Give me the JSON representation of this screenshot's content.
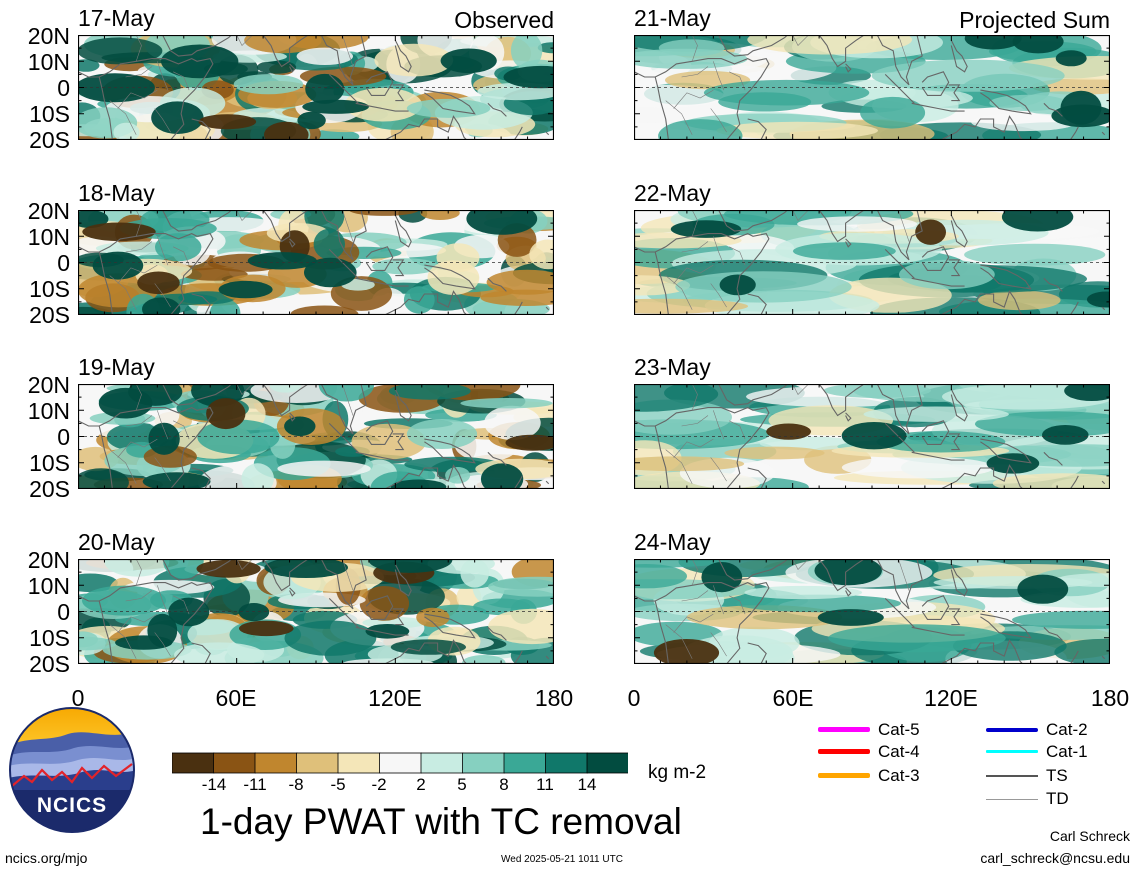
{
  "panels_left": [
    {
      "date": "17-May",
      "tag": "Observed"
    },
    {
      "date": "18-May"
    },
    {
      "date": "19-May"
    },
    {
      "date": "20-May"
    }
  ],
  "panels_right": [
    {
      "date": "21-May",
      "tag": "Projected Sum"
    },
    {
      "date": "22-May"
    },
    {
      "date": "23-May"
    },
    {
      "date": "24-May"
    }
  ],
  "lat_labels": [
    "20N",
    "10N",
    "0",
    "10S",
    "20S"
  ],
  "lon_labels": [
    "0",
    "60E",
    "120E",
    "180"
  ],
  "colorbar": {
    "ticks": [
      "-14",
      "-11",
      "-8",
      "-5",
      "-2",
      "2",
      "5",
      "8",
      "11",
      "14"
    ],
    "colors": [
      "#4a3010",
      "#8a5414",
      "#c0862e",
      "#dfc07a",
      "#f4e6b8",
      "#f7f7f7",
      "#c8ece2",
      "#86d0c0",
      "#3aa896",
      "#10786a",
      "#024c40"
    ],
    "units": "kg m-2"
  },
  "title": "1-day PWAT with TC removal",
  "legend": [
    {
      "label": "Cat-5",
      "color": "#ff00ff"
    },
    {
      "label": "Cat-4",
      "color": "#ff0000"
    },
    {
      "label": "Cat-3",
      "color": "#ffa500"
    },
    {
      "label": "Cat-2",
      "color": "#0000cc"
    },
    {
      "label": "Cat-1",
      "color": "#00ffff"
    },
    {
      "label": "TS",
      "color": "#555555"
    },
    {
      "label": "TD",
      "color": "#999999"
    }
  ],
  "logo": {
    "text": "NCICS"
  },
  "footer": {
    "url": "ncics.org/mjo",
    "timestamp": "Wed 2025-05-21 1011 UTC",
    "author": "Carl Schreck",
    "email": "carl_schreck@ncsu.edu"
  },
  "chart_data": {
    "type": "heatmap",
    "variable": "1-day PWAT with TC removal",
    "units": "kg m-2",
    "x_axis": {
      "range": [
        0,
        180
      ],
      "ticks": [
        "0",
        "60E",
        "120E",
        "180"
      ]
    },
    "y_axis": {
      "range": [
        -20,
        20
      ],
      "ticks": [
        "20N",
        "10N",
        "0",
        "10S",
        "20S"
      ]
    },
    "color_levels": [
      -14,
      -11,
      -8,
      -5,
      -2,
      2,
      5,
      8,
      11,
      14
    ],
    "panels": [
      {
        "date": "17-May",
        "group": "Observed"
      },
      {
        "date": "18-May",
        "group": "Observed"
      },
      {
        "date": "19-May",
        "group": "Observed"
      },
      {
        "date": "20-May",
        "group": "Observed"
      },
      {
        "date": "21-May",
        "group": "Projected Sum"
      },
      {
        "date": "22-May",
        "group": "Projected Sum"
      },
      {
        "date": "23-May",
        "group": "Projected Sum"
      },
      {
        "date": "24-May",
        "group": "Projected Sum"
      }
    ]
  }
}
